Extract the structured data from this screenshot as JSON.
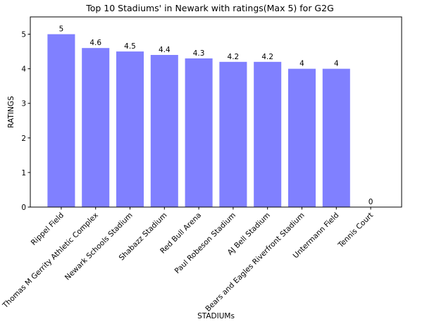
{
  "chart_data": {
    "type": "bar",
    "title": "Top 10 Stadiums' in Newark with ratings(Max 5) for G2G",
    "xlabel": "STADIUMs",
    "ylabel": "RATINGS",
    "categories": [
      "Rippel Field",
      "Thomas M Gerrity Athletic Complex",
      "Newark Schools Stadium",
      "Shabazz Stadium",
      "Red Bull Arena",
      "Paul Robeson Stadium",
      "AJ Bell Stadium",
      "Bears and Eagles Riverfront Stadium",
      "Untermann Field",
      "Tennis Court"
    ],
    "values": [
      5,
      4.6,
      4.5,
      4.4,
      4.3,
      4.2,
      4.2,
      4,
      4,
      0
    ],
    "data_labels": [
      "5",
      "4.6",
      "4.5",
      "4.4",
      "4.3",
      "4.2",
      "4.2",
      "4",
      "4",
      "0"
    ],
    "ylim": [
      0,
      5.5
    ],
    "yticks": [
      0,
      1,
      2,
      3,
      4,
      5
    ],
    "bar_color": "#8080ff",
    "grid": false,
    "legend": "none"
  }
}
